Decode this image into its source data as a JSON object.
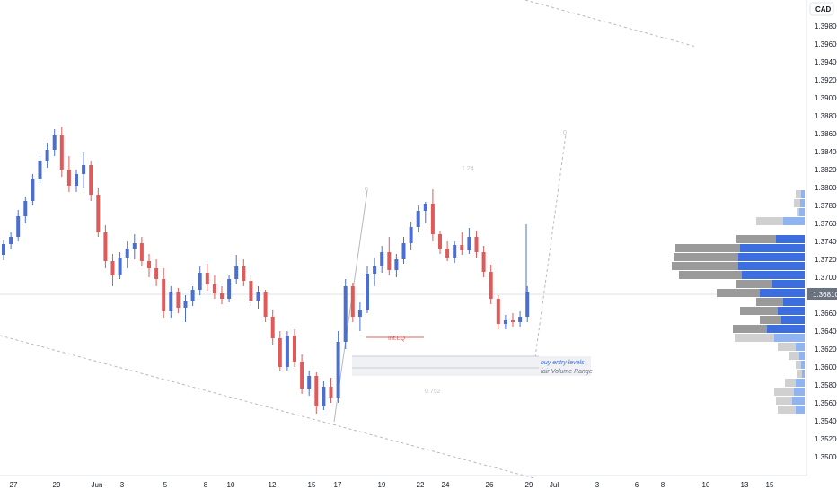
{
  "chart_data": {
    "type": "candlestick",
    "currency_label": "CAD",
    "y_ticks": [
      "1.39800",
      "1.39600",
      "1.39400",
      "1.39200",
      "1.39000",
      "1.38800",
      "1.38600",
      "1.38400",
      "1.38200",
      "1.38000",
      "1.37800",
      "1.37600",
      "1.37400",
      "1.37200",
      "1.37000",
      "1.36600",
      "1.36400",
      "1.36200",
      "1.36000",
      "1.35800",
      "1.35600",
      "1.35400",
      "1.35200",
      "1.35000"
    ],
    "y_tick_values": [
      1.398,
      1.396,
      1.394,
      1.392,
      1.39,
      1.388,
      1.386,
      1.384,
      1.382,
      1.38,
      1.378,
      1.376,
      1.374,
      1.372,
      1.37,
      1.366,
      1.364,
      1.362,
      1.36,
      1.358,
      1.356,
      1.354,
      1.352,
      1.35
    ],
    "ylim": [
      1.3488,
      1.4
    ],
    "current_price": "1.36810",
    "current_price_value": 1.3681,
    "x_labels": [
      "27",
      "29",
      "Jun",
      "3",
      "5",
      "8",
      "10",
      "12",
      "15",
      "17",
      "19",
      "22",
      "24",
      "26",
      "29",
      "Jul",
      "3",
      "6",
      "8",
      "10",
      "13",
      "15"
    ],
    "annotations": {
      "int_lq": "Int.LQ",
      "buy_entry": "buy entry levels",
      "fair_volume": "fair Volume Range",
      "fib_top": "0",
      "fib_mid": "1.24",
      "fib_low": "0.752",
      "fib_right": "0"
    },
    "colors": {
      "up": "#4a6fd1",
      "down": "#e05a5a",
      "vp_blue": "#3d6ee0",
      "vp_light": "#90b4f2",
      "vp_gray": "#9a9a9a",
      "vp_lightgray": "#d0d0d0"
    },
    "candles": [
      [
        1.3725,
        1.3741,
        1.3719,
        1.3737
      ],
      [
        1.3737,
        1.375,
        1.3731,
        1.3745
      ],
      [
        1.3745,
        1.3775,
        1.374,
        1.3768
      ],
      [
        1.3768,
        1.379,
        1.376,
        1.3785
      ],
      [
        1.3785,
        1.3815,
        1.378,
        1.381
      ],
      [
        1.381,
        1.3835,
        1.3805,
        1.383
      ],
      [
        1.383,
        1.385,
        1.3822,
        1.3842
      ],
      [
        1.3842,
        1.3865,
        1.3835,
        1.3858
      ],
      [
        1.3858,
        1.3868,
        1.3812,
        1.382
      ],
      [
        1.382,
        1.3835,
        1.3795,
        1.3802
      ],
      [
        1.3802,
        1.382,
        1.3795,
        1.3815
      ],
      [
        1.3815,
        1.384,
        1.38,
        1.3825
      ],
      [
        1.3825,
        1.383,
        1.3785,
        1.3792
      ],
      [
        1.3792,
        1.38,
        1.3745,
        1.375
      ],
      [
        1.375,
        1.3758,
        1.371,
        1.3718
      ],
      [
        1.3718,
        1.3726,
        1.369,
        1.3702
      ],
      [
        1.3702,
        1.3728,
        1.3698,
        1.3722
      ],
      [
        1.3722,
        1.374,
        1.371,
        1.3732
      ],
      [
        1.3732,
        1.3748,
        1.372,
        1.3738
      ],
      [
        1.3738,
        1.3745,
        1.3712,
        1.3718
      ],
      [
        1.3718,
        1.3726,
        1.37,
        1.371
      ],
      [
        1.371,
        1.372,
        1.369,
        1.3698
      ],
      [
        1.3698,
        1.371,
        1.3655,
        1.3662
      ],
      [
        1.3662,
        1.369,
        1.3655,
        1.3684
      ],
      [
        1.3684,
        1.3688,
        1.366,
        1.3666
      ],
      [
        1.3666,
        1.368,
        1.365,
        1.3673
      ],
      [
        1.3673,
        1.369,
        1.3668,
        1.3686
      ],
      [
        1.3686,
        1.3712,
        1.368,
        1.3705
      ],
      [
        1.3705,
        1.3715,
        1.3685,
        1.3692
      ],
      [
        1.3692,
        1.3702,
        1.3676,
        1.3682
      ],
      [
        1.3682,
        1.369,
        1.367,
        1.3676
      ],
      [
        1.3676,
        1.3702,
        1.3672,
        1.3698
      ],
      [
        1.3698,
        1.3725,
        1.3692,
        1.3712
      ],
      [
        1.3712,
        1.372,
        1.369,
        1.3696
      ],
      [
        1.3696,
        1.3702,
        1.3668,
        1.3674
      ],
      [
        1.3674,
        1.369,
        1.3665,
        1.3684
      ],
      [
        1.3684,
        1.3686,
        1.365,
        1.3656
      ],
      [
        1.3656,
        1.3664,
        1.3625,
        1.3632
      ],
      [
        1.3632,
        1.364,
        1.3595,
        1.36
      ],
      [
        1.36,
        1.364,
        1.3596,
        1.3635
      ],
      [
        1.3635,
        1.3642,
        1.36,
        1.3606
      ],
      [
        1.3606,
        1.3614,
        1.357,
        1.3576
      ],
      [
        1.3576,
        1.3596,
        1.3568,
        1.359
      ],
      [
        1.359,
        1.3594,
        1.3548,
        1.3556
      ],
      [
        1.3556,
        1.3584,
        1.3552,
        1.3578
      ],
      [
        1.3578,
        1.3588,
        1.356,
        1.3566
      ],
      [
        1.3566,
        1.364,
        1.356,
        1.3628
      ],
      [
        1.3628,
        1.3698,
        1.362,
        1.369
      ],
      [
        1.369,
        1.3694,
        1.365,
        1.3656
      ],
      [
        1.3656,
        1.3672,
        1.364,
        1.3664
      ],
      [
        1.3664,
        1.3712,
        1.366,
        1.3704
      ],
      [
        1.3704,
        1.3722,
        1.369,
        1.3712
      ],
      [
        1.3712,
        1.3735,
        1.3705,
        1.3728
      ],
      [
        1.3728,
        1.3745,
        1.3702,
        1.3708
      ],
      [
        1.3708,
        1.3726,
        1.37,
        1.372
      ],
      [
        1.372,
        1.3745,
        1.3715,
        1.3738
      ],
      [
        1.3738,
        1.3762,
        1.373,
        1.3756
      ],
      [
        1.3756,
        1.378,
        1.375,
        1.3774
      ],
      [
        1.3774,
        1.3784,
        1.376,
        1.3782
      ],
      [
        1.3782,
        1.3798,
        1.374,
        1.3748
      ],
      [
        1.3748,
        1.3752,
        1.3726,
        1.3732
      ],
      [
        1.3732,
        1.374,
        1.3718,
        1.3722
      ],
      [
        1.3722,
        1.374,
        1.3716,
        1.3736
      ],
      [
        1.3736,
        1.375,
        1.3725,
        1.373
      ],
      [
        1.373,
        1.3755,
        1.3726,
        1.3745
      ],
      [
        1.3745,
        1.3752,
        1.3722,
        1.3728
      ],
      [
        1.3728,
        1.3735,
        1.37,
        1.3706
      ],
      [
        1.3706,
        1.3714,
        1.367,
        1.3676
      ],
      [
        1.3676,
        1.368,
        1.3642,
        1.3648
      ],
      [
        1.3648,
        1.3658,
        1.3642,
        1.3652
      ],
      [
        1.3652,
        1.366,
        1.3645,
        1.365
      ],
      [
        1.365,
        1.3662,
        1.3645,
        1.3656
      ],
      [
        1.3656,
        1.369,
        1.365,
        1.3684
      ]
    ]
  }
}
